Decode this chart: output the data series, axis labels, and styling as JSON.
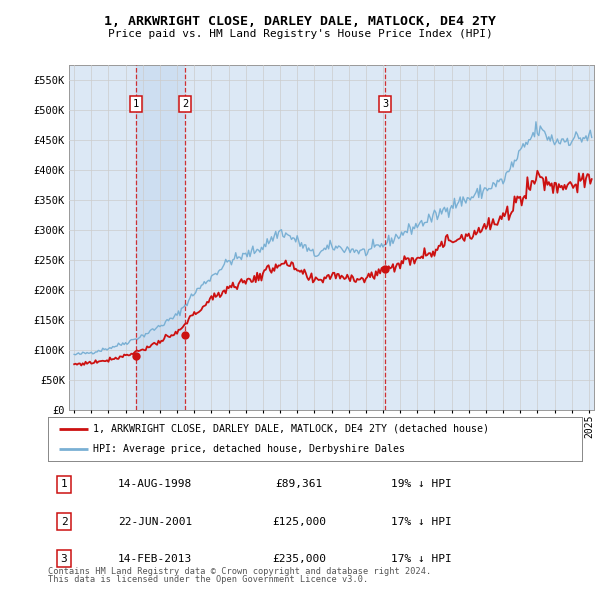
{
  "title": "1, ARKWRIGHT CLOSE, DARLEY DALE, MATLOCK, DE4 2TY",
  "subtitle": "Price paid vs. HM Land Registry's House Price Index (HPI)",
  "legend_line1": "1, ARKWRIGHT CLOSE, DARLEY DALE, MATLOCK, DE4 2TY (detached house)",
  "legend_line2": "HPI: Average price, detached house, Derbyshire Dales",
  "footer1": "Contains HM Land Registry data © Crown copyright and database right 2024.",
  "footer2": "This data is licensed under the Open Government Licence v3.0.",
  "sales": [
    {
      "num": 1,
      "date": "14-AUG-1998",
      "price": 89361,
      "pct": "19%",
      "dir": "↓"
    },
    {
      "num": 2,
      "date": "22-JUN-2001",
      "price": 125000,
      "pct": "17%",
      "dir": "↓"
    },
    {
      "num": 3,
      "date": "14-FEB-2013",
      "price": 235000,
      "pct": "17%",
      "dir": "↓"
    }
  ],
  "sale_years": [
    1998.62,
    2001.47,
    2013.12
  ],
  "sale_prices": [
    89361,
    125000,
    235000
  ],
  "hpi_color": "#7ab0d4",
  "price_color": "#cc1111",
  "bg_color": "#dce8f5",
  "shade_color": "#ccdaea",
  "grid_color": "#cccccc",
  "ylim": [
    0,
    575000
  ],
  "yticks": [
    0,
    50000,
    100000,
    150000,
    200000,
    250000,
    300000,
    350000,
    400000,
    450000,
    500000,
    550000
  ],
  "xlim_left": 1994.7,
  "xlim_right": 2025.3
}
